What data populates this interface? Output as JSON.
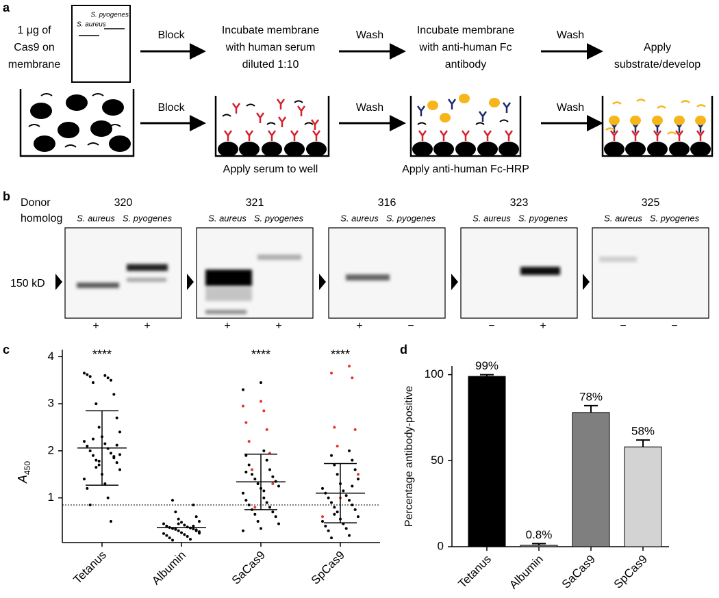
{
  "panel_a": {
    "label": "a",
    "membrane_text": [
      "1 μg of",
      "Cas9 on",
      "membrane"
    ],
    "membrane_lanes": [
      "S. pyogenes",
      "S. aureus"
    ],
    "row1_arrows": [
      "Block",
      "Wash",
      "Wash"
    ],
    "row1_steps": [
      [
        "Incubate membrane",
        "with human serum",
        "diluted 1:10"
      ],
      [
        "Incubate membrane",
        "with anti-human Fc",
        "antibody"
      ],
      [
        "Apply",
        "substrate/develop"
      ]
    ],
    "row2_arrows": [
      "Block",
      "Wash",
      "Wash"
    ],
    "row2_captions": [
      "Apply serum to well",
      "Apply anti-human Fc-HRP"
    ]
  },
  "panel_b": {
    "label": "b",
    "row_title": [
      "Donor",
      "homolog"
    ],
    "marker": "150 kD",
    "donors": [
      {
        "id": "320",
        "lanes": [
          "S. aureus",
          "S. pyogenes"
        ],
        "results": [
          "+",
          "+"
        ]
      },
      {
        "id": "321",
        "lanes": [
          "S. aureus",
          "S. pyogenes"
        ],
        "results": [
          "+",
          "+"
        ]
      },
      {
        "id": "316",
        "lanes": [
          "S. aureus",
          "S. pyogenes"
        ],
        "results": [
          "+",
          "−"
        ]
      },
      {
        "id": "323",
        "lanes": [
          "S. aureus",
          "S. pyogenes"
        ],
        "results": [
          "−",
          "+"
        ]
      },
      {
        "id": "325",
        "lanes": [
          "S. aureus",
          "S. pyogenes"
        ],
        "results": [
          "−",
          "−"
        ]
      }
    ]
  },
  "chart_data": [
    {
      "type": "strip",
      "panel": "c",
      "y_label": "A",
      "y_label_sub": "450",
      "ylim": [
        0.05,
        4.15
      ],
      "yticks": [
        1,
        2,
        3,
        4
      ],
      "threshold": 0.85,
      "color": "#000000",
      "highlight_color": "#e8332a",
      "groups": [
        {
          "name": "Tetanus",
          "annotation": "****",
          "mean": 2.06,
          "sd_range": [
            1.27,
            2.85
          ],
          "values": [
            3.65,
            3.6,
            3.62,
            3.55,
            3.58,
            3.5,
            3.45,
            3.2,
            3.0,
            2.7,
            2.5,
            2.4,
            2.3,
            2.2,
            2.15,
            2.1,
            2.05,
            2.0,
            1.95,
            1.9,
            1.85,
            1.8,
            1.75,
            1.7,
            1.6,
            1.5,
            1.4,
            1.3,
            1.2,
            1.0,
            0.85,
            0.5,
            2.25,
            1.88,
            1.65,
            2.12,
            1.78,
            1.92
          ],
          "highlight_values": []
        },
        {
          "name": "Albumin",
          "mean": 0.37,
          "values": [
            0.95,
            0.85,
            0.7,
            0.6,
            0.55,
            0.5,
            0.48,
            0.45,
            0.42,
            0.4,
            0.38,
            0.37,
            0.36,
            0.35,
            0.34,
            0.33,
            0.32,
            0.3,
            0.28,
            0.26,
            0.24,
            0.22,
            0.2,
            0.18,
            0.15,
            0.12,
            0.1,
            0.4,
            0.35,
            0.3,
            0.45,
            0.25
          ],
          "highlight_values": []
        },
        {
          "name": "SaCas9",
          "annotation": "****",
          "mean": 1.34,
          "sd_range": [
            0.75,
            1.93
          ],
          "values": [
            3.45,
            3.3,
            2.0,
            1.9,
            1.8,
            1.7,
            1.6,
            1.5,
            1.45,
            1.4,
            1.35,
            1.3,
            1.25,
            1.2,
            1.1,
            1.0,
            0.95,
            0.9,
            0.85,
            0.8,
            0.75,
            0.7,
            0.65,
            0.6,
            0.5,
            0.45,
            0.35,
            0.3,
            1.15,
            1.55
          ],
          "highlight_values": [
            3.05,
            2.95,
            2.85,
            2.6,
            2.45,
            2.2,
            1.95,
            1.6,
            1.3,
            0.8
          ]
        },
        {
          "name": "SpCas9",
          "annotation": "****",
          "mean": 1.1,
          "sd_range": [
            0.47,
            1.73
          ],
          "values": [
            2.0,
            1.9,
            1.8,
            1.7,
            1.6,
            1.5,
            1.4,
            1.3,
            1.2,
            1.15,
            1.1,
            1.05,
            1.0,
            0.95,
            0.9,
            0.85,
            0.8,
            0.75,
            0.7,
            0.6,
            0.55,
            0.5,
            0.45,
            0.4,
            0.35,
            0.3,
            0.2,
            0.15,
            1.25,
            0.65
          ],
          "highlight_values": [
            3.8,
            3.65,
            3.55,
            2.5,
            2.45,
            2.1,
            1.5,
            1.0,
            0.6
          ]
        }
      ]
    },
    {
      "type": "bar",
      "panel": "d",
      "y_label": "Percentage antibody-positive",
      "categories": [
        "Tetanus",
        "Albumin",
        "SaCas9",
        "SpCas9"
      ],
      "values": [
        99,
        0.8,
        78,
        58
      ],
      "value_labels": [
        "99%",
        "0.8%",
        "78%",
        "58%"
      ],
      "errors": [
        1,
        1,
        4,
        4
      ],
      "colors": [
        "#000000",
        "#a9a9a9",
        "#7f7f7f",
        "#d3d3d3"
      ],
      "ylim": [
        0,
        105
      ],
      "yticks": [
        0,
        50,
        100
      ]
    }
  ]
}
